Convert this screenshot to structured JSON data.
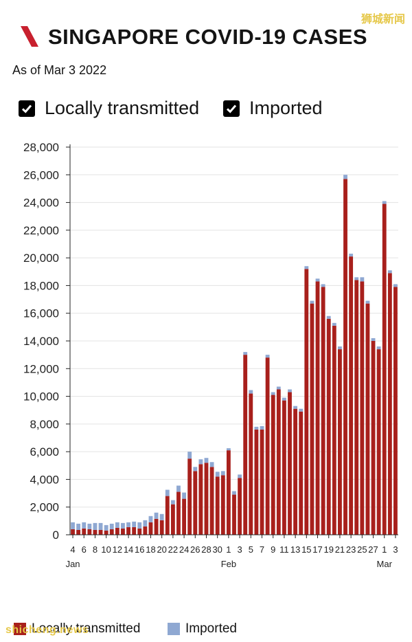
{
  "header": {
    "title": "SINGAPORE COVID-19 CASES",
    "as_of": "As of Mar 3 2022",
    "brand_color": "#c8202e"
  },
  "toggles": [
    {
      "label": "Locally transmitted",
      "checked": true
    },
    {
      "label": "Imported",
      "checked": true
    }
  ],
  "watermark": {
    "top": "狮城新闻",
    "bottom": "shicheng.news"
  },
  "legend": [
    {
      "label": "Locally transmitted",
      "color": "#a8201c"
    },
    {
      "label": "Imported",
      "color": "#8fa8d2"
    }
  ],
  "chart_data": {
    "type": "bar",
    "stacked": true,
    "title": "SINGAPORE COVID-19 CASES",
    "xlabel": "",
    "ylabel": "",
    "ylim": [
      0,
      28000
    ],
    "y_ticks": [
      "0",
      "2,000",
      "4,000",
      "6,000",
      "8,000",
      "10,000",
      "12,000",
      "14,000",
      "16,000",
      "18,000",
      "20,000",
      "22,000",
      "24,000",
      "26,000",
      "28,000"
    ],
    "x_tick_labels": [
      "4",
      "6",
      "8",
      "10",
      "12",
      "14",
      "16",
      "18",
      "20",
      "22",
      "24",
      "26",
      "28",
      "30",
      "1",
      "3",
      "5",
      "7",
      "9",
      "11",
      "13",
      "15",
      "17",
      "19",
      "21",
      "23",
      "25",
      "27",
      "1",
      "3"
    ],
    "month_labels": [
      {
        "label": "Jan",
        "index": 0
      },
      {
        "label": "Feb",
        "index": 28
      },
      {
        "label": "Mar",
        "index": 56
      }
    ],
    "categories": [
      "Jan 4",
      "Jan 5",
      "Jan 6",
      "Jan 7",
      "Jan 8",
      "Jan 9",
      "Jan 10",
      "Jan 11",
      "Jan 12",
      "Jan 13",
      "Jan 14",
      "Jan 15",
      "Jan 16",
      "Jan 17",
      "Jan 18",
      "Jan 19",
      "Jan 20",
      "Jan 21",
      "Jan 22",
      "Jan 23",
      "Jan 24",
      "Jan 25",
      "Jan 26",
      "Jan 27",
      "Jan 28",
      "Jan 29",
      "Jan 30",
      "Jan 31",
      "Feb 1",
      "Feb 2",
      "Feb 3",
      "Feb 4",
      "Feb 5",
      "Feb 6",
      "Feb 7",
      "Feb 8",
      "Feb 9",
      "Feb 10",
      "Feb 11",
      "Feb 12",
      "Feb 13",
      "Feb 14",
      "Feb 15",
      "Feb 16",
      "Feb 17",
      "Feb 18",
      "Feb 19",
      "Feb 20",
      "Feb 21",
      "Feb 22",
      "Feb 23",
      "Feb 24",
      "Feb 25",
      "Feb 26",
      "Feb 27",
      "Feb 28",
      "Mar 1",
      "Mar 2",
      "Mar 3"
    ],
    "series": [
      {
        "name": "Locally transmitted",
        "color": "#a8201c",
        "values": [
          400,
          350,
          450,
          400,
          350,
          350,
          300,
          400,
          500,
          450,
          550,
          550,
          450,
          600,
          900,
          1150,
          1050,
          2800,
          2200,
          3100,
          2600,
          5500,
          4600,
          5100,
          5200,
          4900,
          4200,
          4300,
          6100,
          2900,
          4100,
          13000,
          10200,
          7600,
          7600,
          12800,
          10100,
          10500,
          9700,
          10300,
          9100,
          8900,
          19200,
          16700,
          18300,
          17900,
          15600,
          15100,
          13400,
          25700,
          20100,
          18400,
          18300,
          16700,
          14000,
          13400,
          23900,
          18900,
          17900
        ]
      },
      {
        "name": "Imported",
        "color": "#8fa8d2",
        "values": [
          500,
          450,
          450,
          400,
          500,
          500,
          400,
          400,
          400,
          400,
          350,
          400,
          450,
          450,
          450,
          450,
          450,
          450,
          300,
          450,
          450,
          500,
          300,
          350,
          350,
          350,
          350,
          300,
          150,
          250,
          250,
          200,
          250,
          200,
          250,
          200,
          200,
          200,
          200,
          200,
          200,
          200,
          200,
          200,
          200,
          200,
          200,
          200,
          200,
          300,
          200,
          200,
          300,
          200,
          200,
          200,
          200,
          200,
          200
        ]
      }
    ]
  }
}
